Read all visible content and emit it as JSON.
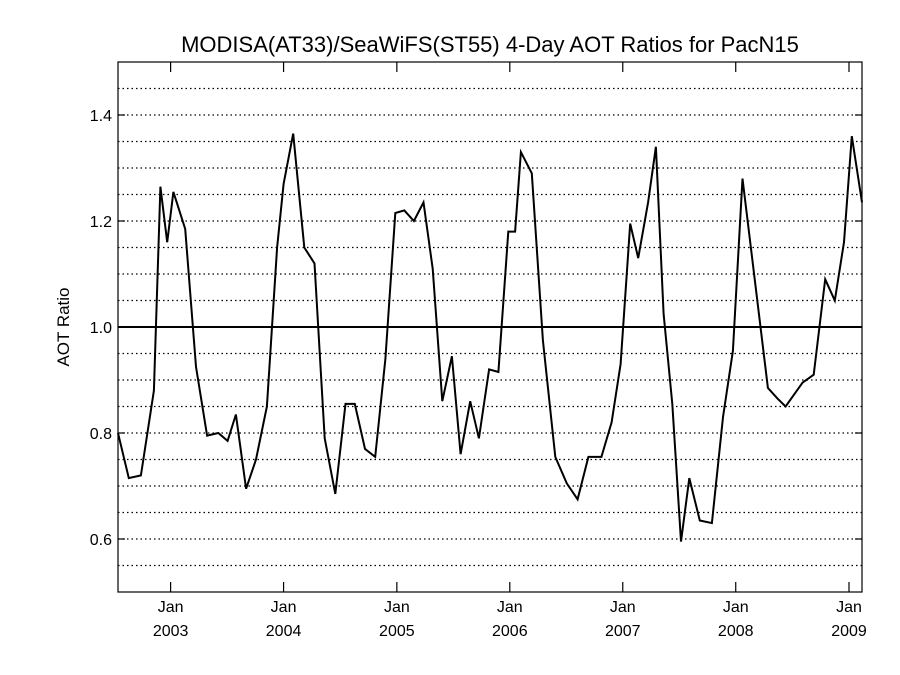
{
  "chart_data": {
    "type": "line",
    "title": "MODISA(AT33)/SeaWiFS(ST55) 4-Day AOT Ratios for PacN15",
    "xlabel": "",
    "ylabel": "AOT Ratio",
    "xlim": [
      "2002-07-15",
      "2009-02-12"
    ],
    "ylim": [
      0.5,
      1.5
    ],
    "yticks": [
      0.6,
      0.8,
      1.0,
      1.2,
      1.4
    ],
    "ytick_labels": [
      "0.6",
      "0.8",
      "1.0",
      "1.2",
      "1.4"
    ],
    "xticks": [
      {
        "date": "2003-01-01",
        "month": "Jan",
        "year": "2003"
      },
      {
        "date": "2004-01-01",
        "month": "Jan",
        "year": "2004"
      },
      {
        "date": "2005-01-01",
        "month": "Jan",
        "year": "2005"
      },
      {
        "date": "2006-01-01",
        "month": "Jan",
        "year": "2006"
      },
      {
        "date": "2007-01-01",
        "month": "Jan",
        "year": "2007"
      },
      {
        "date": "2008-01-01",
        "month": "Jan",
        "year": "2008"
      },
      {
        "date": "2009-01-01",
        "month": "Jan",
        "year": "2009"
      }
    ],
    "grid": "horizontal dotted every 0.05",
    "reference_line": 1.0,
    "series": [
      {
        "color": "#000000",
        "x": [
          "2002-07-15",
          "2002-08-19",
          "2002-09-27",
          "2002-11-08",
          "2002-11-29",
          "2002-12-21",
          "2003-01-10",
          "2003-02-17",
          "2003-03-24",
          "2003-04-29",
          "2003-06-04",
          "2003-07-04",
          "2003-07-31",
          "2003-09-02",
          "2003-10-04",
          "2003-11-08",
          "2003-12-11",
          "2004-01-01",
          "2004-02-01",
          "2004-03-08",
          "2004-04-10",
          "2004-05-13",
          "2004-06-16",
          "2004-07-19",
          "2004-08-18",
          "2004-09-20",
          "2004-10-23",
          "2004-11-25",
          "2004-12-27",
          "2005-01-25",
          "2005-02-25",
          "2005-03-28",
          "2005-04-27",
          "2005-05-28",
          "2005-06-28",
          "2005-07-26",
          "2005-08-26",
          "2005-09-23",
          "2005-10-26",
          "2005-11-25",
          "2005-12-27",
          "2006-01-18",
          "2006-02-06",
          "2006-03-13",
          "2006-04-18",
          "2006-05-28",
          "2006-07-04",
          "2006-08-08",
          "2006-09-12",
          "2006-10-24",
          "2006-11-26",
          "2006-12-25",
          "2007-01-25",
          "2007-02-20",
          "2007-03-24",
          "2007-04-18",
          "2007-05-13",
          "2007-06-10",
          "2007-07-08",
          "2007-08-04",
          "2007-09-07",
          "2007-10-16",
          "2007-11-21",
          "2007-12-23",
          "2008-01-23",
          "2008-04-14",
          "2008-05-15",
          "2008-06-10",
          "2008-08-04",
          "2008-09-09",
          "2008-10-16",
          "2008-11-16",
          "2008-12-16",
          "2009-01-10",
          "2009-02-12"
        ],
        "values": [
          0.8,
          0.715,
          0.72,
          0.88,
          1.265,
          1.16,
          1.255,
          1.185,
          0.925,
          0.795,
          0.8,
          0.785,
          0.835,
          0.695,
          0.75,
          0.85,
          1.15,
          1.27,
          1.365,
          1.15,
          1.12,
          0.79,
          0.685,
          0.855,
          0.855,
          0.77,
          0.755,
          0.94,
          1.215,
          1.22,
          1.2,
          1.235,
          1.11,
          0.86,
          0.945,
          0.76,
          0.86,
          0.79,
          0.92,
          0.915,
          1.18,
          1.18,
          1.33,
          1.29,
          0.975,
          0.755,
          0.705,
          0.675,
          0.755,
          0.755,
          0.82,
          0.93,
          1.195,
          1.13,
          1.235,
          1.34,
          1.025,
          0.855,
          0.595,
          0.715,
          0.635,
          0.63,
          0.83,
          0.955,
          1.28,
          0.885,
          0.865,
          0.85,
          0.895,
          0.91,
          1.09,
          1.05,
          1.16,
          1.36,
          1.235
        ]
      }
    ]
  }
}
